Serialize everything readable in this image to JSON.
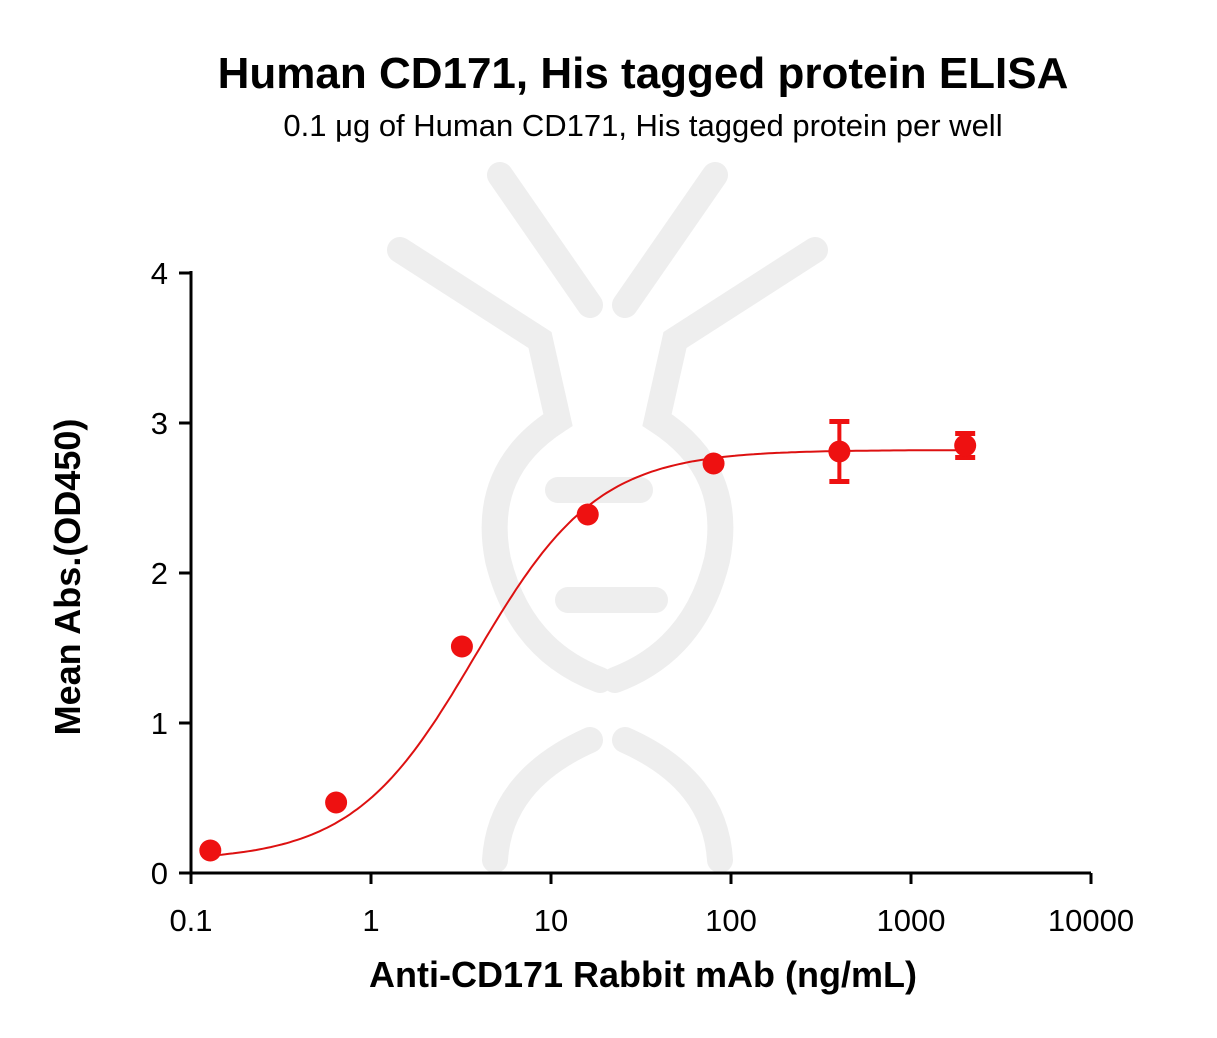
{
  "chart_data": {
    "type": "scatter",
    "title": "Human CD171, His tagged protein ELISA",
    "subtitle": "0.1 μg of Human CD171, His tagged protein per well",
    "xlabel": "Anti-CD171 Rabbit mAb (ng/mL)",
    "ylabel": "Mean Abs.(OD450)",
    "x_scale": "log",
    "xlim": [
      0.1,
      10000
    ],
    "ylim": [
      0,
      4
    ],
    "x_ticks": [
      "0.1",
      "1",
      "10",
      "100",
      "1000",
      "10000"
    ],
    "y_ticks": [
      "0",
      "1",
      "2",
      "3",
      "4"
    ],
    "grid": false,
    "colors": {
      "series": "#ee1111",
      "fit": "#dd1111"
    },
    "series": [
      {
        "x": [
          0.128,
          0.64,
          3.2,
          16,
          80,
          400,
          2000
        ],
        "y": [
          0.15,
          0.47,
          1.51,
          2.39,
          2.73,
          2.81,
          2.85
        ],
        "error": [
          0.0,
          0.0,
          0.0,
          0.0,
          0.0,
          0.2,
          0.08
        ]
      }
    ],
    "fit": {
      "model": "4PL",
      "bottom": 0.08,
      "top": 2.82,
      "ec50": 3.8,
      "hill": 1.28
    }
  }
}
